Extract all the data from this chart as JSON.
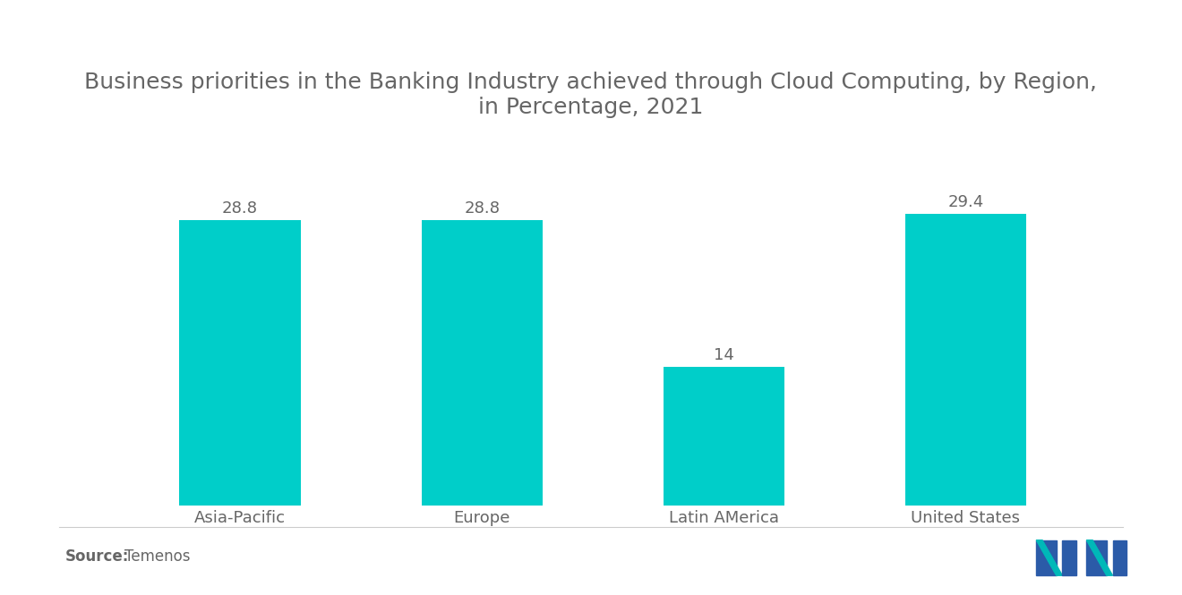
{
  "title": "Business priorities in the Banking Industry achieved through Cloud Computing, by Region,\nin Percentage, 2021",
  "categories": [
    "Asia-Pacific",
    "Europe",
    "Latin AMerica",
    "United States"
  ],
  "values": [
    28.8,
    28.8,
    14,
    29.4
  ],
  "bar_color": "#00CEC9",
  "value_labels": [
    "28.8",
    "28.8",
    "14",
    "29.4"
  ],
  "source_label": "Source:",
  "source_text": "Temenos",
  "title_fontsize": 18,
  "label_fontsize": 13,
  "value_fontsize": 13,
  "source_fontsize": 12,
  "background_color": "#FFFFFF",
  "text_color": "#666666",
  "ylim": [
    0,
    36
  ],
  "bar_width": 0.5,
  "logo_navy": "#2B5BA8",
  "logo_teal": "#00B8B8"
}
